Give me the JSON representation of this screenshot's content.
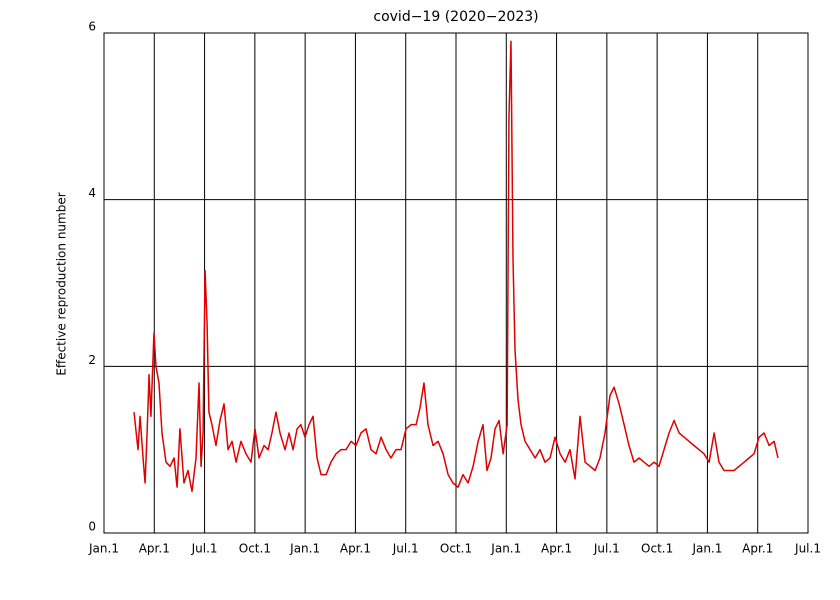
{
  "chart_data": {
    "type": "line",
    "title": "covid−19 (2020−2023)",
    "y_label": "Effective reproduction number",
    "color": "#e00000",
    "grid": true,
    "xlim": [
      0,
      42
    ],
    "xticks": [
      {
        "value": 0,
        "label": "Jan.1"
      },
      {
        "value": 3,
        "label": "Apr.1"
      },
      {
        "value": 6,
        "label": "Jul.1"
      },
      {
        "value": 9,
        "label": "Oct.1"
      },
      {
        "value": 12,
        "label": "Jan.1"
      },
      {
        "value": 15,
        "label": "Apr.1"
      },
      {
        "value": 18,
        "label": "Jul.1"
      },
      {
        "value": 21,
        "label": "Oct.1"
      },
      {
        "value": 24,
        "label": "Jan.1"
      },
      {
        "value": 27,
        "label": "Apr.1"
      },
      {
        "value": 30,
        "label": "Jul.1"
      },
      {
        "value": 33,
        "label": "Oct.1"
      },
      {
        "value": 36,
        "label": "Jan.1"
      },
      {
        "value": 39,
        "label": "Apr.1"
      },
      {
        "value": 42,
        "label": "Jul.1"
      }
    ],
    "ylim": [
      0,
      6
    ],
    "yticks": [
      0,
      2,
      4,
      6
    ],
    "x": [
      1.79,
      2.03,
      2.15,
      2.33,
      2.45,
      2.57,
      2.69,
      2.8,
      2.98,
      3.1,
      3.28,
      3.46,
      3.7,
      3.94,
      4.18,
      4.36,
      4.53,
      4.77,
      5.01,
      5.25,
      5.49,
      5.67,
      5.79,
      5.91,
      6.03,
      6.15,
      6.26,
      6.44,
      6.68,
      6.92,
      7.16,
      7.4,
      7.64,
      7.88,
      8.17,
      8.47,
      8.77,
      9.01,
      9.25,
      9.55,
      9.79,
      10.02,
      10.26,
      10.5,
      10.8,
      11.04,
      11.28,
      11.52,
      11.75,
      11.99,
      12.23,
      12.47,
      12.71,
      12.95,
      13.25,
      13.54,
      13.84,
      14.14,
      14.44,
      14.74,
      15.04,
      15.33,
      15.63,
      15.93,
      16.23,
      16.53,
      16.83,
      17.12,
      17.42,
      17.72,
      18.02,
      18.32,
      18.62,
      18.85,
      19.09,
      19.33,
      19.63,
      19.93,
      20.23,
      20.53,
      20.82,
      21.12,
      21.42,
      21.72,
      22.02,
      22.32,
      22.61,
      22.85,
      23.09,
      23.33,
      23.57,
      23.81,
      24.05,
      24.16,
      24.28,
      24.4,
      24.52,
      24.7,
      24.88,
      25.12,
      25.42,
      25.72,
      26.01,
      26.31,
      26.61,
      26.91,
      27.21,
      27.51,
      27.8,
      28.1,
      28.4,
      28.7,
      29.0,
      29.3,
      29.59,
      29.89,
      30.19,
      30.43,
      30.73,
      31.03,
      31.32,
      31.62,
      31.92,
      32.22,
      32.52,
      32.82,
      33.11,
      33.41,
      33.71,
      34.01,
      34.31,
      34.61,
      34.9,
      35.2,
      35.5,
      35.8,
      36.1,
      36.4,
      36.69,
      36.99,
      37.29,
      37.59,
      37.89,
      38.19,
      38.48,
      38.78,
      39.08,
      39.38,
      39.68,
      39.98,
      40.21
    ],
    "values": [
      1.45,
      1.0,
      1.4,
      0.9,
      0.6,
      1.2,
      1.9,
      1.4,
      2.4,
      2.0,
      1.8,
      1.2,
      0.85,
      0.8,
      0.9,
      0.55,
      1.25,
      0.6,
      0.75,
      0.5,
      0.9,
      1.8,
      0.8,
      1.2,
      3.15,
      2.5,
      1.45,
      1.3,
      1.05,
      1.35,
      1.55,
      1.0,
      1.1,
      0.85,
      1.1,
      0.95,
      0.85,
      1.25,
      0.9,
      1.05,
      1.0,
      1.2,
      1.45,
      1.2,
      1.0,
      1.2,
      1.0,
      1.25,
      1.3,
      1.15,
      1.3,
      1.4,
      0.9,
      0.7,
      0.7,
      0.85,
      0.95,
      1.0,
      1.0,
      1.1,
      1.05,
      1.2,
      1.25,
      1.0,
      0.95,
      1.15,
      1.0,
      0.9,
      1.0,
      1.0,
      1.25,
      1.3,
      1.3,
      1.5,
      1.8,
      1.3,
      1.05,
      1.1,
      0.95,
      0.7,
      0.6,
      0.55,
      0.7,
      0.6,
      0.8,
      1.1,
      1.3,
      0.75,
      0.9,
      1.25,
      1.35,
      0.95,
      1.3,
      5.0,
      5.9,
      3.3,
      2.2,
      1.6,
      1.3,
      1.1,
      1.0,
      0.9,
      1.0,
      0.85,
      0.9,
      1.15,
      0.95,
      0.85,
      1.0,
      0.65,
      1.4,
      0.85,
      0.8,
      0.75,
      0.9,
      1.2,
      1.65,
      1.75,
      1.55,
      1.3,
      1.05,
      0.85,
      0.9,
      0.85,
      0.8,
      0.85,
      0.8,
      1.0,
      1.2,
      1.35,
      1.2,
      1.15,
      1.1,
      1.05,
      1.0,
      0.95,
      0.85,
      1.2,
      0.85,
      0.75,
      0.75,
      0.75,
      0.8,
      0.85,
      0.9,
      0.95,
      1.15,
      1.2,
      1.05,
      1.1,
      0.9
    ]
  }
}
